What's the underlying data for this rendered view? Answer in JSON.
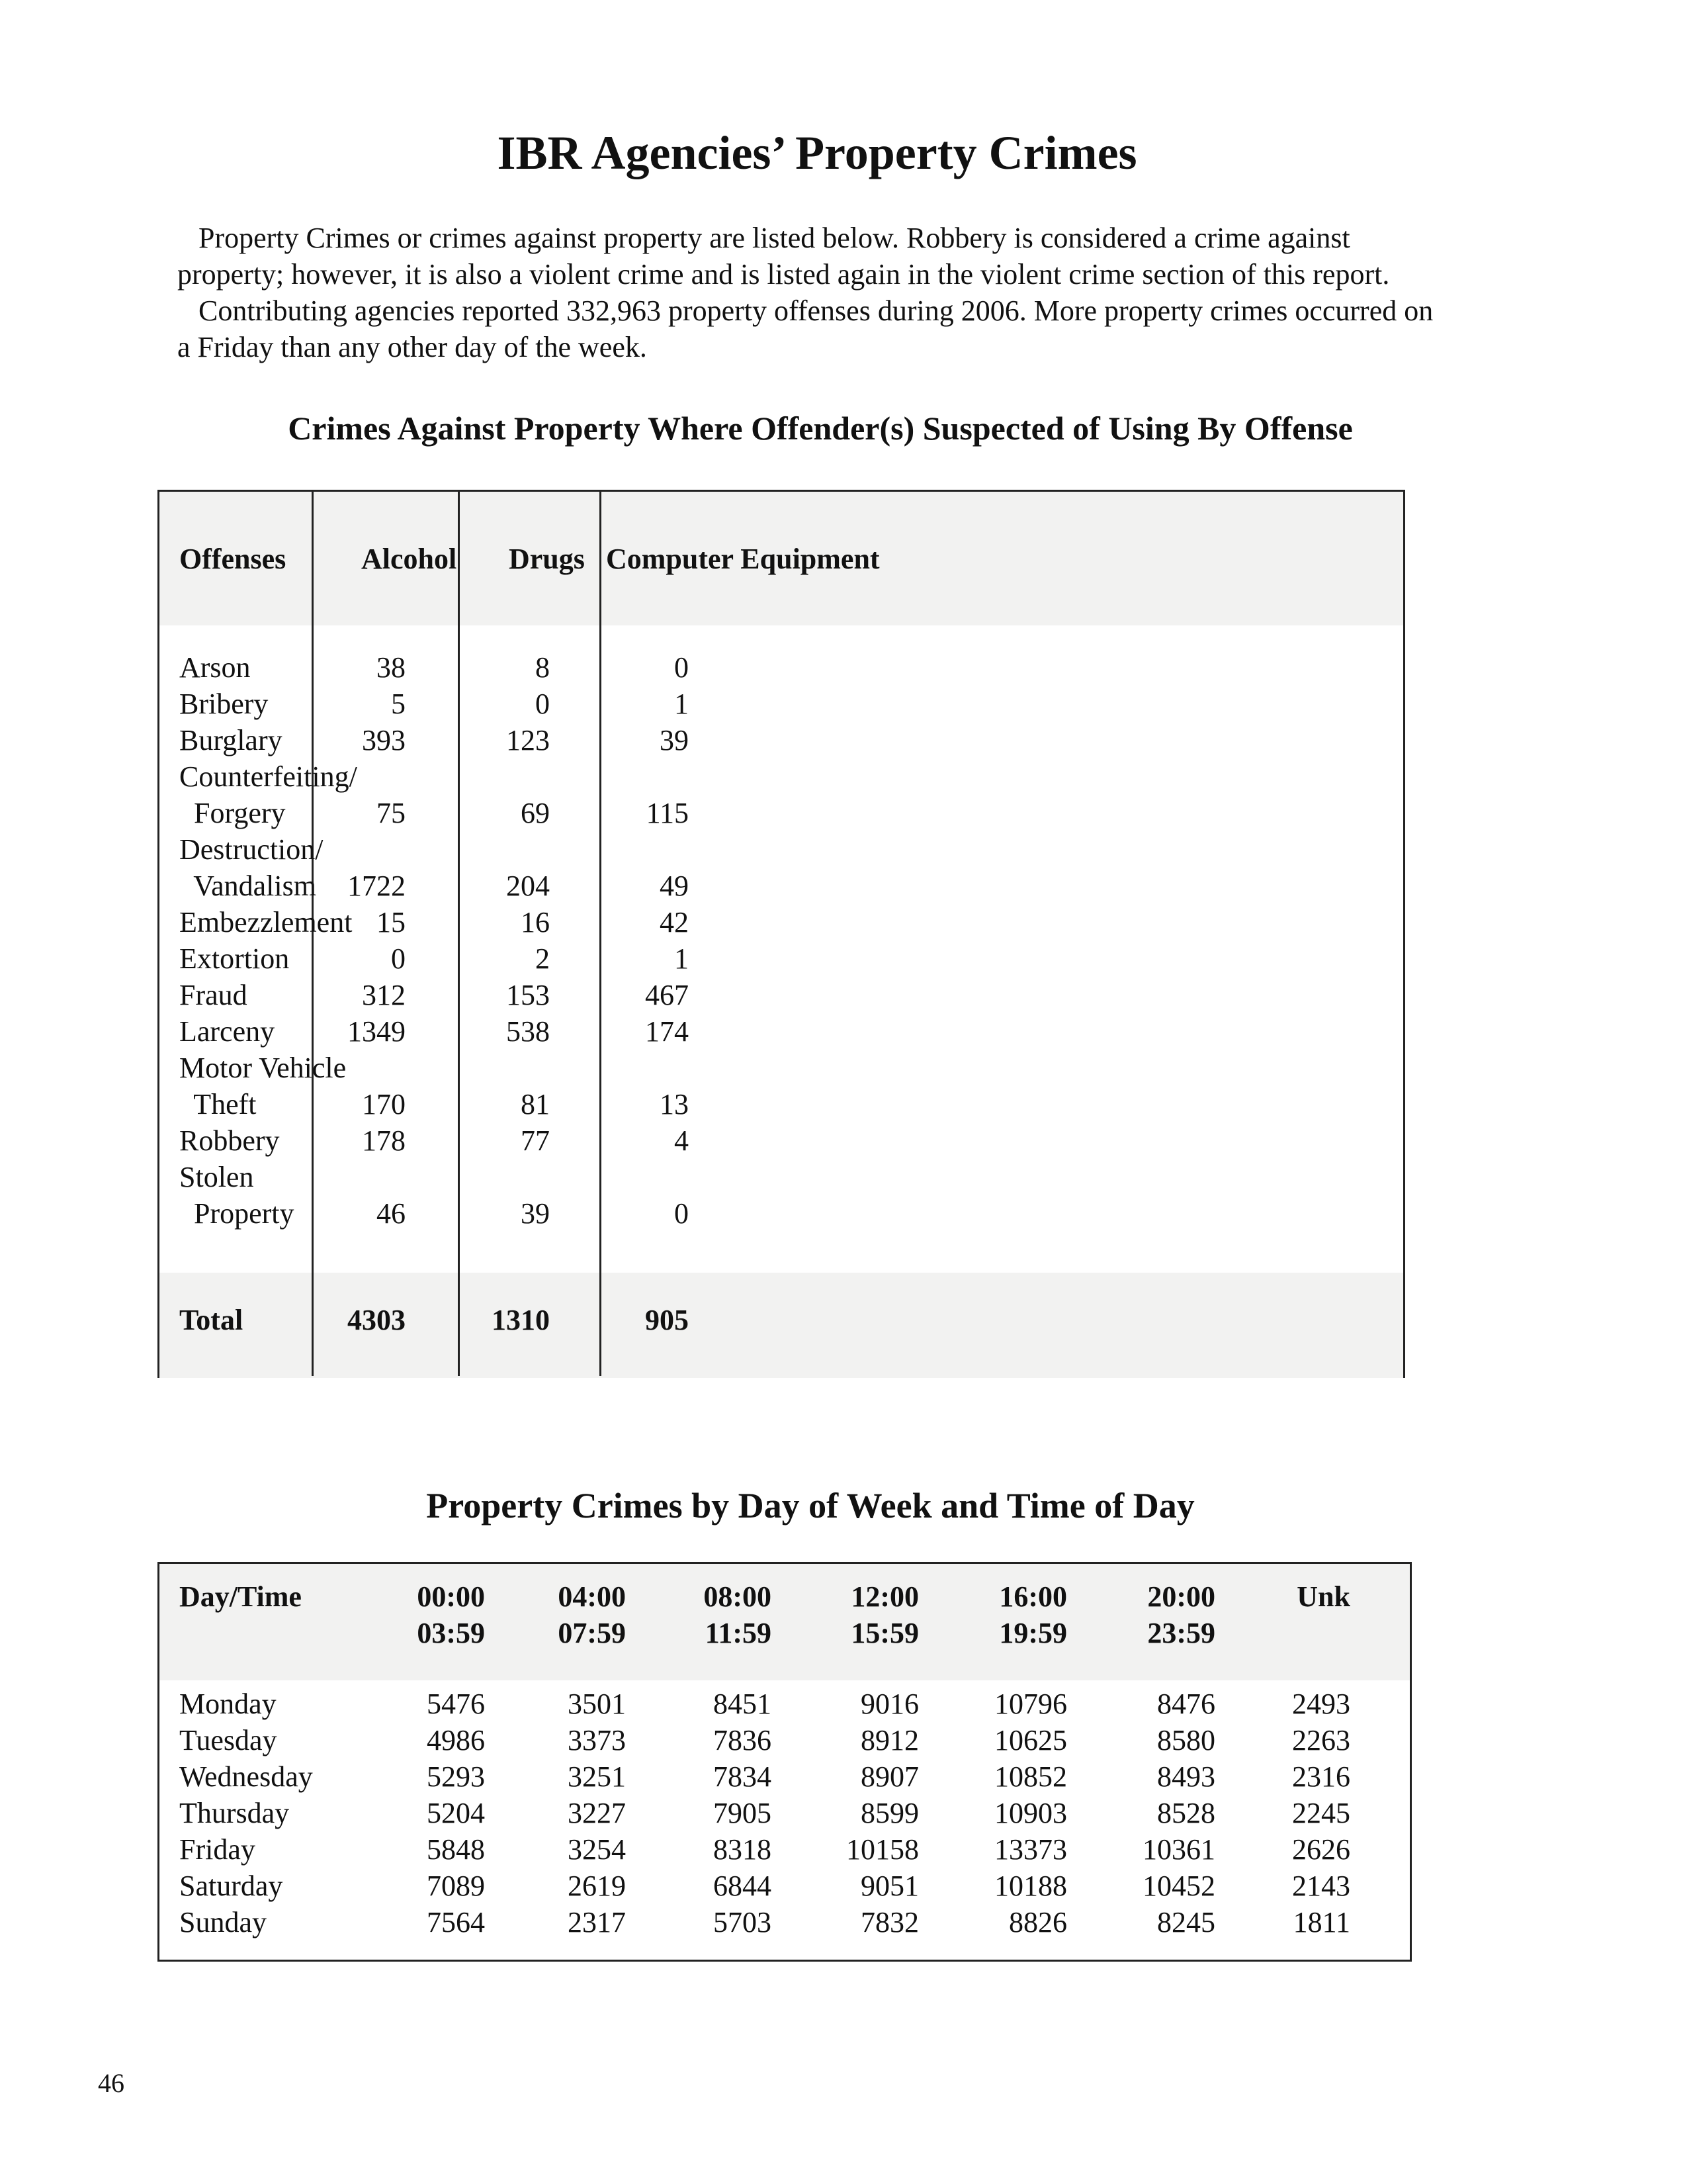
{
  "title": "IBR Agencies’ Property Crimes",
  "intro": [
    "Property Crimes or crimes against property are listed below.  Robbery is considered a crime against property; however, it is also a violent crime and is listed again in the violent crime section of this report.",
    "Contributing agencies reported 332,963 property offenses during 2006.  More property crimes occurred on a Friday than any other day of the week."
  ],
  "table1": {
    "title": "Crimes Against Property Where Offender(s) Suspected of Using By Offense",
    "headers": [
      "Offenses",
      "Alcohol",
      "Drugs",
      "Computer Equipment"
    ],
    "rows": [
      {
        "label": "Arson",
        "alcohol": "38",
        "drugs": "8",
        "computer": "0"
      },
      {
        "label": "Bribery",
        "alcohol": "5",
        "drugs": "0",
        "computer": "1"
      },
      {
        "label": "Burglary",
        "alcohol": "393",
        "drugs": "123",
        "computer": "39"
      },
      {
        "label": "Counterfeiting/\n  Forgery",
        "alcohol": "75",
        "drugs": "69",
        "computer": "115"
      },
      {
        "label": "Destruction/\n  Vandalism",
        "alcohol": "1722",
        "drugs": "204",
        "computer": "49"
      },
      {
        "label": "Embezzlement",
        "alcohol": "15",
        "drugs": "16",
        "computer": "42"
      },
      {
        "label": "Extortion",
        "alcohol": "0",
        "drugs": "2",
        "computer": "1"
      },
      {
        "label": "Fraud",
        "alcohol": "312",
        "drugs": "153",
        "computer": "467"
      },
      {
        "label": "Larceny",
        "alcohol": "1349",
        "drugs": "538",
        "computer": "174"
      },
      {
        "label": "Motor Vehicle\n  Theft",
        "alcohol": "170",
        "drugs": "81",
        "computer": "13"
      },
      {
        "label": "Robbery",
        "alcohol": "178",
        "drugs": "77",
        "computer": "4"
      },
      {
        "label": "Stolen\n  Property",
        "alcohol": "46",
        "drugs": "39",
        "computer": "0"
      }
    ],
    "total": {
      "label": "Total",
      "alcohol": "4303",
      "drugs": "1310",
      "computer": "905"
    }
  },
  "table2": {
    "title": "Property Crimes by Day of Week and Time of Day",
    "headers": [
      "Day/Time",
      "00:00\n03:59",
      "04:00\n07:59",
      "08:00\n11:59",
      "12:00\n15:59",
      "16:00\n19:59",
      "20:00\n23:59",
      "Unk"
    ],
    "rows": [
      {
        "day": "Monday",
        "values": [
          "5476",
          "3501",
          "8451",
          "9016",
          "10796",
          "8476",
          "2493"
        ]
      },
      {
        "day": "Tuesday",
        "values": [
          "4986",
          "3373",
          "7836",
          "8912",
          "10625",
          "8580",
          "2263"
        ]
      },
      {
        "day": "Wednesday",
        "values": [
          "5293",
          "3251",
          "7834",
          "8907",
          "10852",
          "8493",
          "2316"
        ]
      },
      {
        "day": "Thursday",
        "values": [
          "5204",
          "3227",
          "7905",
          "8599",
          "10903",
          "8528",
          "2245"
        ]
      },
      {
        "day": "Friday",
        "values": [
          "5848",
          "3254",
          "8318",
          "10158",
          "13373",
          "10361",
          "2626"
        ]
      },
      {
        "day": "Saturday",
        "values": [
          "7089",
          "2619",
          "6844",
          "9051",
          "10188",
          "10452",
          "2143"
        ]
      },
      {
        "day": "Sunday",
        "values": [
          "7564",
          "2317",
          "5703",
          "7832",
          "8826",
          "8245",
          "1811"
        ]
      }
    ]
  },
  "page_number": "46"
}
